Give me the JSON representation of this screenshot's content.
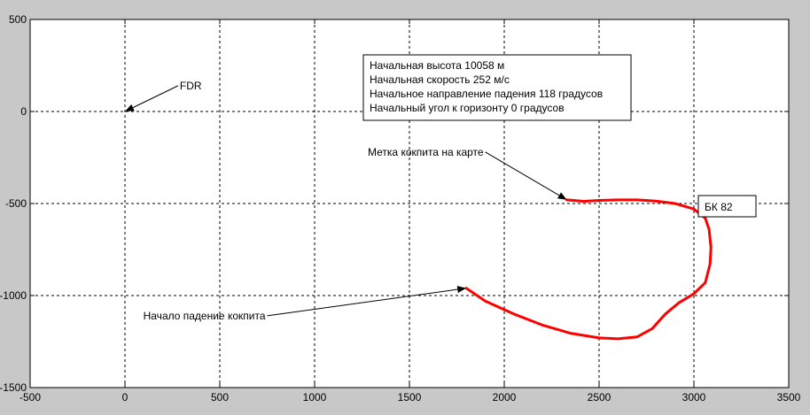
{
  "chart_data": {
    "type": "line",
    "title": "",
    "xlabel": "",
    "ylabel": "",
    "xlim": [
      -500,
      3500
    ],
    "ylim": [
      -1500,
      500
    ],
    "grid": true,
    "x_ticks": [
      -500,
      0,
      500,
      1000,
      1500,
      2000,
      2500,
      3000,
      3500
    ],
    "y_ticks": [
      -1500,
      -1000,
      -500,
      0,
      500
    ],
    "x_tick_labels": [
      "-500",
      "0",
      "500",
      "1000",
      "1500",
      "2000",
      "2500",
      "3000",
      "3500"
    ],
    "y_tick_labels": [
      "-1500",
      "-1000",
      "-500",
      "0",
      "500"
    ],
    "series": [
      {
        "color": "#ff0000",
        "x": [
          1800,
          1900,
          2050,
          2200,
          2350,
          2500,
          2600,
          2700,
          2780,
          2850,
          2920,
          3000,
          3060,
          3085,
          3090,
          3080,
          3060,
          3000,
          2900,
          2800,
          2700,
          2600,
          2500,
          2420,
          2330
        ],
        "y": [
          -960,
          -1030,
          -1100,
          -1160,
          -1205,
          -1230,
          -1235,
          -1225,
          -1180,
          -1100,
          -1040,
          -990,
          -930,
          -830,
          -740,
          -640,
          -580,
          -530,
          -500,
          -487,
          -480,
          -480,
          -483,
          -488,
          -480
        ]
      }
    ],
    "annotations": [
      {
        "text": "FDR",
        "text_x": 280,
        "text_y": 140,
        "arrow_x": 0,
        "arrow_y": 0
      },
      {
        "text": "Метка кокпита на карте",
        "text_x": 1900,
        "text_y": -220,
        "arrow_x": 2330,
        "arrow_y": -480
      },
      {
        "text": "Начало падение кокпита",
        "text_x": 750,
        "text_y": -1110,
        "arrow_x": 1800,
        "arrow_y": -960
      }
    ],
    "info_box": [
      "Начальная высота 10058 м",
      "Начальная скорость 252 м/с",
      "Начальное направление падения 118 градусов",
      "Начальный угол к горизонту 0 градусов"
    ],
    "label_box": "БК 82"
  }
}
